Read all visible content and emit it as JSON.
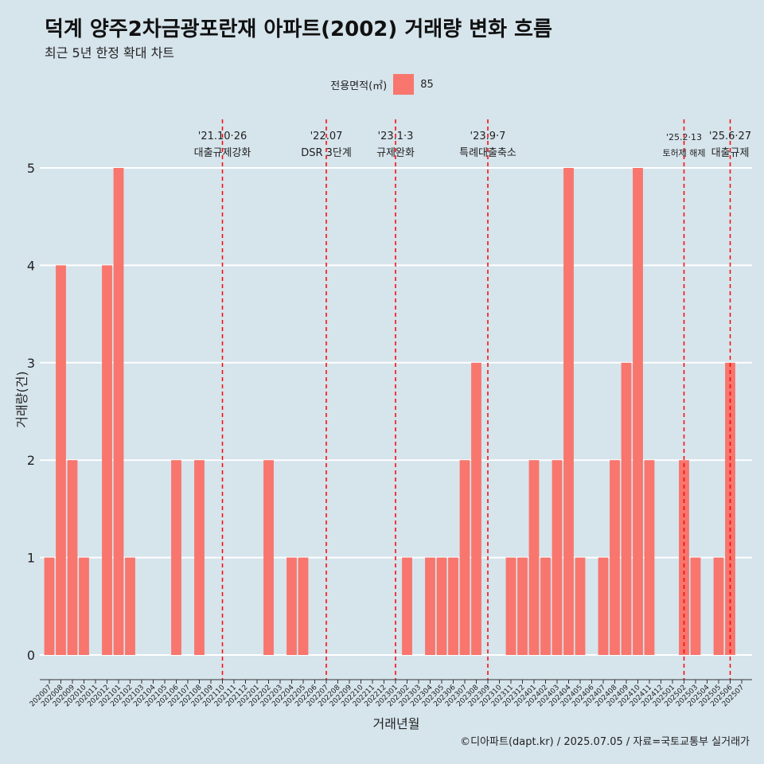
{
  "header": {
    "title": "덕계 양주2차금광포란재 아파트(2002) 거래량 변화 흐름",
    "subtitle": "최근 5년 한정 확대 차트"
  },
  "legend": {
    "title": "전용면적(㎡)",
    "items": [
      {
        "label": "85",
        "color": "#f8766d"
      }
    ]
  },
  "caption": "©디아파트(dapt.kr) / 2025.07.05 / 자료=국토교통부 실거래가",
  "chart_data": {
    "type": "bar",
    "xlabel": "거래년월",
    "ylabel": "거래량(건)",
    "ylim": [
      0,
      5
    ],
    "yticks": [
      0,
      1,
      2,
      3,
      4,
      5
    ],
    "grid": true,
    "legend_position": "top",
    "bar_color": "#f8766d",
    "categories": [
      "202007",
      "202008",
      "202009",
      "202010",
      "202011",
      "202012",
      "202101",
      "202102",
      "202103",
      "202104",
      "202105",
      "202106",
      "202107",
      "202108",
      "202109",
      "202110",
      "202111",
      "202112",
      "202201",
      "202202",
      "202203",
      "202204",
      "202205",
      "202206",
      "202207",
      "202208",
      "202209",
      "202210",
      "202211",
      "202212",
      "202301",
      "202302",
      "202303",
      "202304",
      "202305",
      "202306",
      "202307",
      "202308",
      "202309",
      "202310",
      "202311",
      "202312",
      "202401",
      "202402",
      "202403",
      "202404",
      "202405",
      "202406",
      "202407",
      "202408",
      "202409",
      "202410",
      "202411",
      "202412",
      "202501",
      "202502",
      "202503",
      "202504",
      "202505",
      "202506",
      "202507"
    ],
    "series": [
      {
        "values": [
          1,
          4,
          2,
          1,
          0,
          4,
          5,
          1,
          0,
          0,
          0,
          2,
          0,
          2,
          0,
          0,
          0,
          0,
          0,
          2,
          0,
          1,
          1,
          0,
          0,
          0,
          0,
          0,
          0,
          0,
          0,
          1,
          0,
          1,
          1,
          1,
          2,
          3,
          0,
          0,
          1,
          1,
          2,
          1,
          2,
          5,
          1,
          0,
          1,
          2,
          3,
          5,
          2,
          0,
          0,
          2,
          1,
          0,
          1,
          3,
          0
        ]
      }
    ],
    "annotations": [
      {
        "x": "202110",
        "date": "'21.10·26",
        "label": "대출규제강화",
        "color": "#ff0000"
      },
      {
        "x": "202207",
        "date": "'22.07",
        "label": "DSR 3단계",
        "color": "#ff0000"
      },
      {
        "x": "202301",
        "date": "'23.1·3",
        "label": "규제완화",
        "color": "#ff0000"
      },
      {
        "x": "202309",
        "date": "'23.9·7",
        "label": "특례대출축소",
        "color": "#ff0000"
      },
      {
        "x": "202502",
        "date": "'25.2·13",
        "label": "토허제 해제",
        "color": "#ff0000"
      },
      {
        "x": "202506",
        "date": "'25.6·27",
        "label": "대출규제",
        "color": "#ff0000"
      }
    ]
  }
}
